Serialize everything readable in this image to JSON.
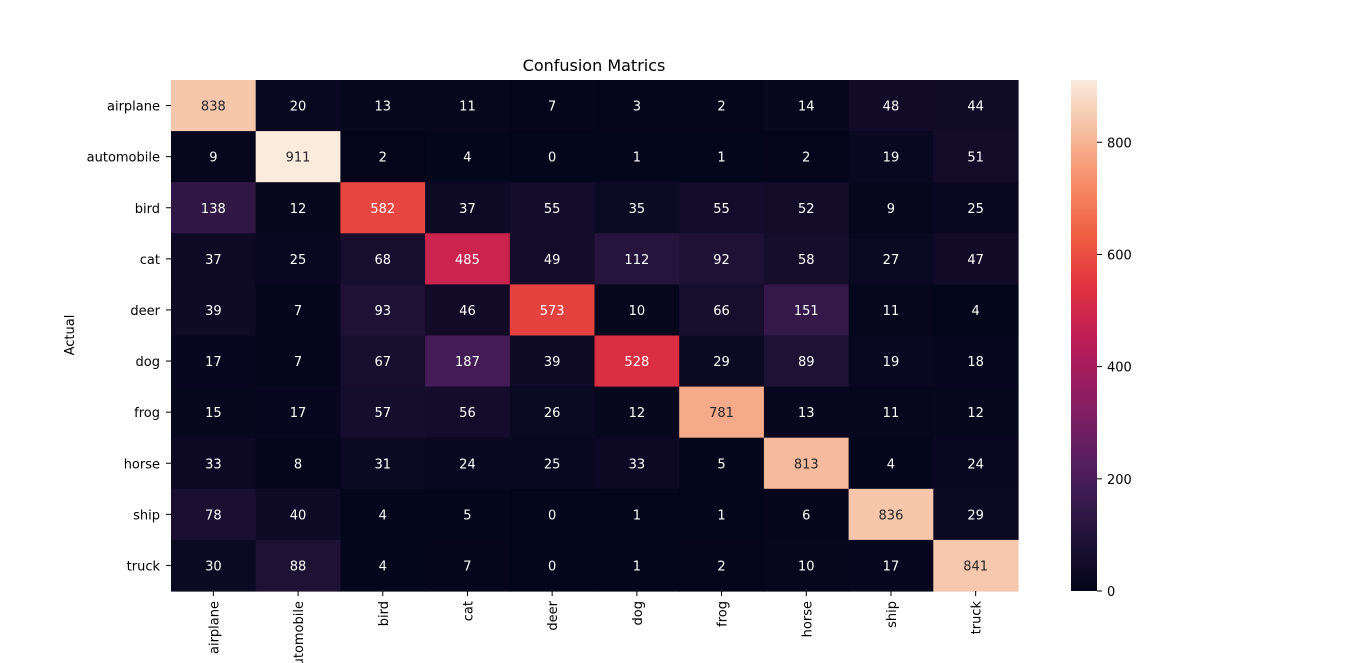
{
  "chart_data": {
    "type": "heatmap",
    "title": "Confusion Matrics",
    "xlabel": "",
    "ylabel": "Actual",
    "row_labels": [
      "airplane",
      "automobile",
      "bird",
      "cat",
      "deer",
      "dog",
      "frog",
      "horse",
      "ship",
      "truck"
    ],
    "col_labels": [
      "airplane",
      "automobile",
      "bird",
      "cat",
      "deer",
      "dog",
      "frog",
      "horse",
      "ship",
      "truck"
    ],
    "values": [
      [
        838,
        20,
        13,
        11,
        7,
        3,
        2,
        14,
        48,
        44
      ],
      [
        9,
        911,
        2,
        4,
        0,
        1,
        1,
        2,
        19,
        51
      ],
      [
        138,
        12,
        582,
        37,
        55,
        35,
        55,
        52,
        9,
        25
      ],
      [
        37,
        25,
        68,
        485,
        49,
        112,
        92,
        58,
        27,
        47
      ],
      [
        39,
        7,
        93,
        46,
        573,
        10,
        66,
        151,
        11,
        4
      ],
      [
        17,
        7,
        67,
        187,
        39,
        528,
        29,
        89,
        19,
        18
      ],
      [
        15,
        17,
        57,
        56,
        26,
        12,
        781,
        13,
        11,
        12
      ],
      [
        33,
        8,
        31,
        24,
        25,
        33,
        5,
        813,
        4,
        24
      ],
      [
        78,
        40,
        4,
        5,
        0,
        1,
        1,
        6,
        836,
        29
      ],
      [
        30,
        88,
        4,
        7,
        0,
        1,
        2,
        10,
        17,
        841
      ]
    ],
    "colorbar": {
      "min": 0,
      "max": 911,
      "ticks": [
        0,
        200,
        400,
        600,
        800
      ],
      "colormap": "rocket"
    }
  }
}
